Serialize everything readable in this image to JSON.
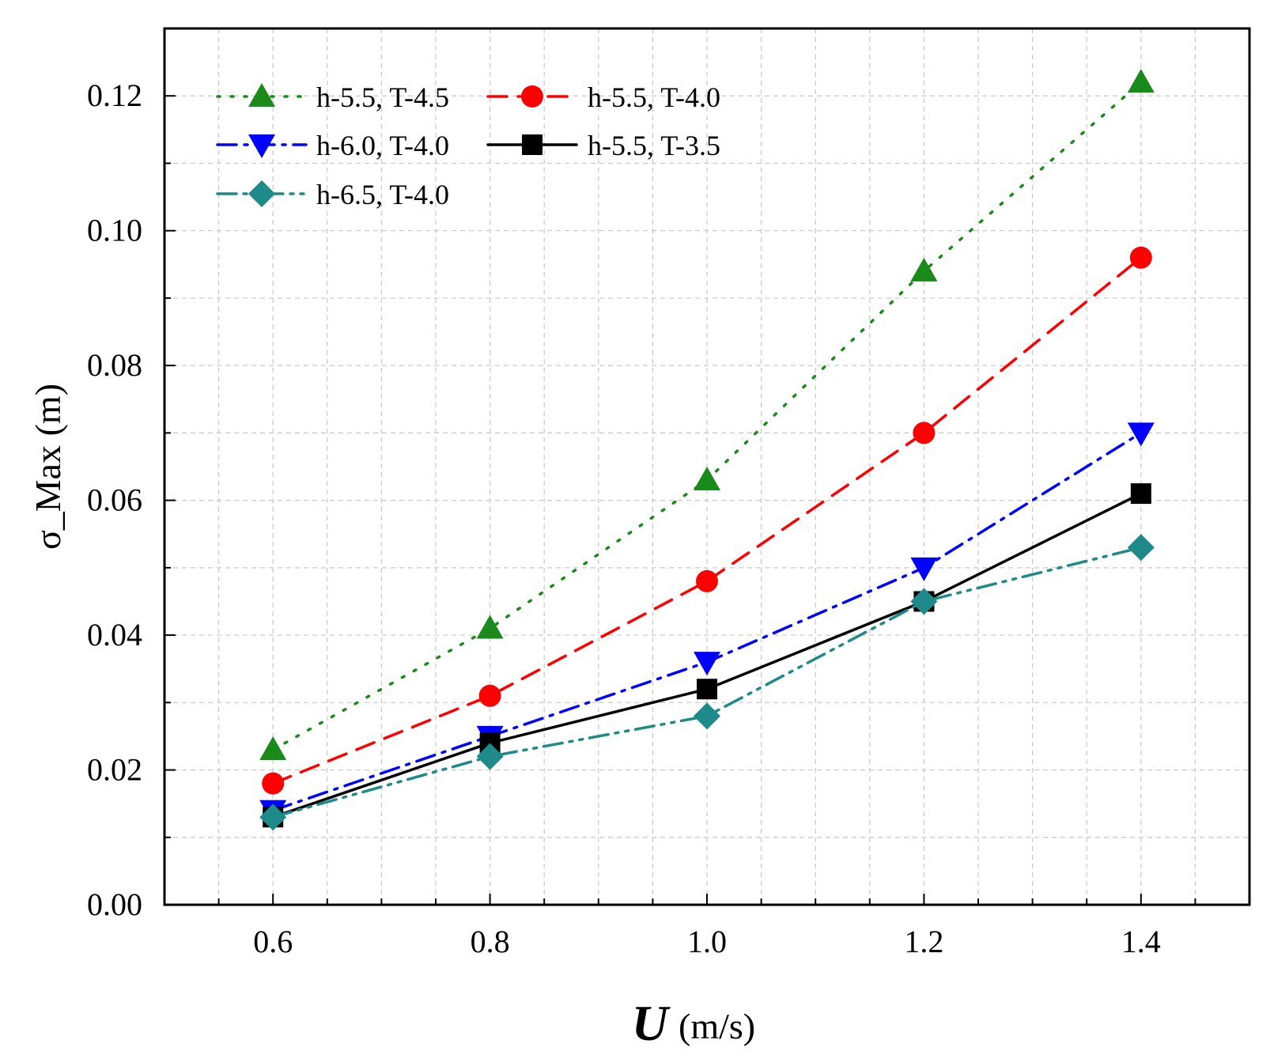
{
  "chart_data": {
    "type": "line",
    "xlabel_symbol": "U",
    "xlabel_unit": "(m/s)",
    "ylabel": "σ_Max (m)",
    "xlim": [
      0.5,
      1.5
    ],
    "ylim": [
      0.0,
      0.13
    ],
    "x_ticks": [
      0.6,
      0.8,
      1.0,
      1.2,
      1.4
    ],
    "x_tick_labels": [
      "0.6",
      "0.8",
      "1.0",
      "1.2",
      "1.4"
    ],
    "y_ticks": [
      0.0,
      0.02,
      0.04,
      0.06,
      0.08,
      0.1,
      0.12
    ],
    "y_tick_labels": [
      "0.00",
      "0.02",
      "0.04",
      "0.06",
      "0.08",
      "0.10",
      "0.12"
    ],
    "grid": true,
    "legend_position": "top-left",
    "x": [
      0.6,
      0.8,
      1.0,
      1.2,
      1.4
    ],
    "series": [
      {
        "name": "h-5.5, T-4.5",
        "values": [
          0.023,
          0.041,
          0.063,
          0.094,
          0.122
        ],
        "color": "#1a8a1a",
        "dash": "dot",
        "marker": "triangle-up"
      },
      {
        "name": "h-5.5, T-4.0",
        "values": [
          0.018,
          0.031,
          0.048,
          0.07,
          0.096
        ],
        "color": "#ff0000",
        "dash": "dash",
        "marker": "circle"
      },
      {
        "name": "h-6.0, T-4.0",
        "values": [
          0.014,
          0.025,
          0.036,
          0.05,
          0.07
        ],
        "color": "#0000ff",
        "dash": "dash-dot",
        "marker": "triangle-down"
      },
      {
        "name": "h-5.5, T-3.5",
        "values": [
          0.013,
          0.024,
          0.032,
          0.045,
          0.061
        ],
        "color": "#000000",
        "dash": "solid",
        "marker": "square"
      },
      {
        "name": "h-6.5, T-4.0",
        "values": [
          0.013,
          0.022,
          0.028,
          0.045,
          0.053
        ],
        "color": "#1f8a8a",
        "dash": "dash-dot-dot",
        "marker": "diamond"
      }
    ]
  }
}
